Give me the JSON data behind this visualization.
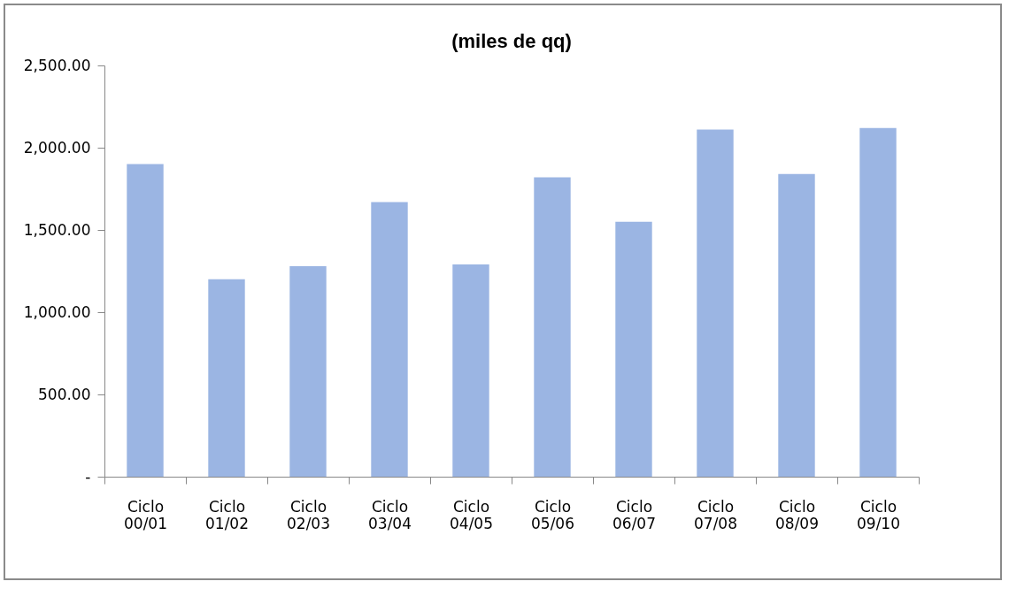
{
  "chart_data": {
    "type": "bar",
    "title": "(miles de qq)",
    "categories": [
      "Ciclo 00/01",
      "Ciclo 01/02",
      "Ciclo 02/03",
      "Ciclo 03/04",
      "Ciclo 04/05",
      "Ciclo 05/06",
      "Ciclo 06/07",
      "Ciclo 07/08",
      "Ciclo 08/09",
      "Ciclo 09/10"
    ],
    "values": [
      1900,
      1200,
      1280,
      1670,
      1290,
      1820,
      1550,
      2110,
      1840,
      2120
    ],
    "color": "#9bb5e3",
    "ylim": [
      0,
      2500
    ],
    "yticks": [
      {
        "value": 0,
        "label": "-"
      },
      {
        "value": 500,
        "label": "500.00"
      },
      {
        "value": 1000,
        "label": "1,000.00"
      },
      {
        "value": 1500,
        "label": "1,500.00"
      },
      {
        "value": 2000,
        "label": "2,000.00"
      },
      {
        "value": 2500,
        "label": "2,500.00"
      }
    ],
    "grid": false
  }
}
